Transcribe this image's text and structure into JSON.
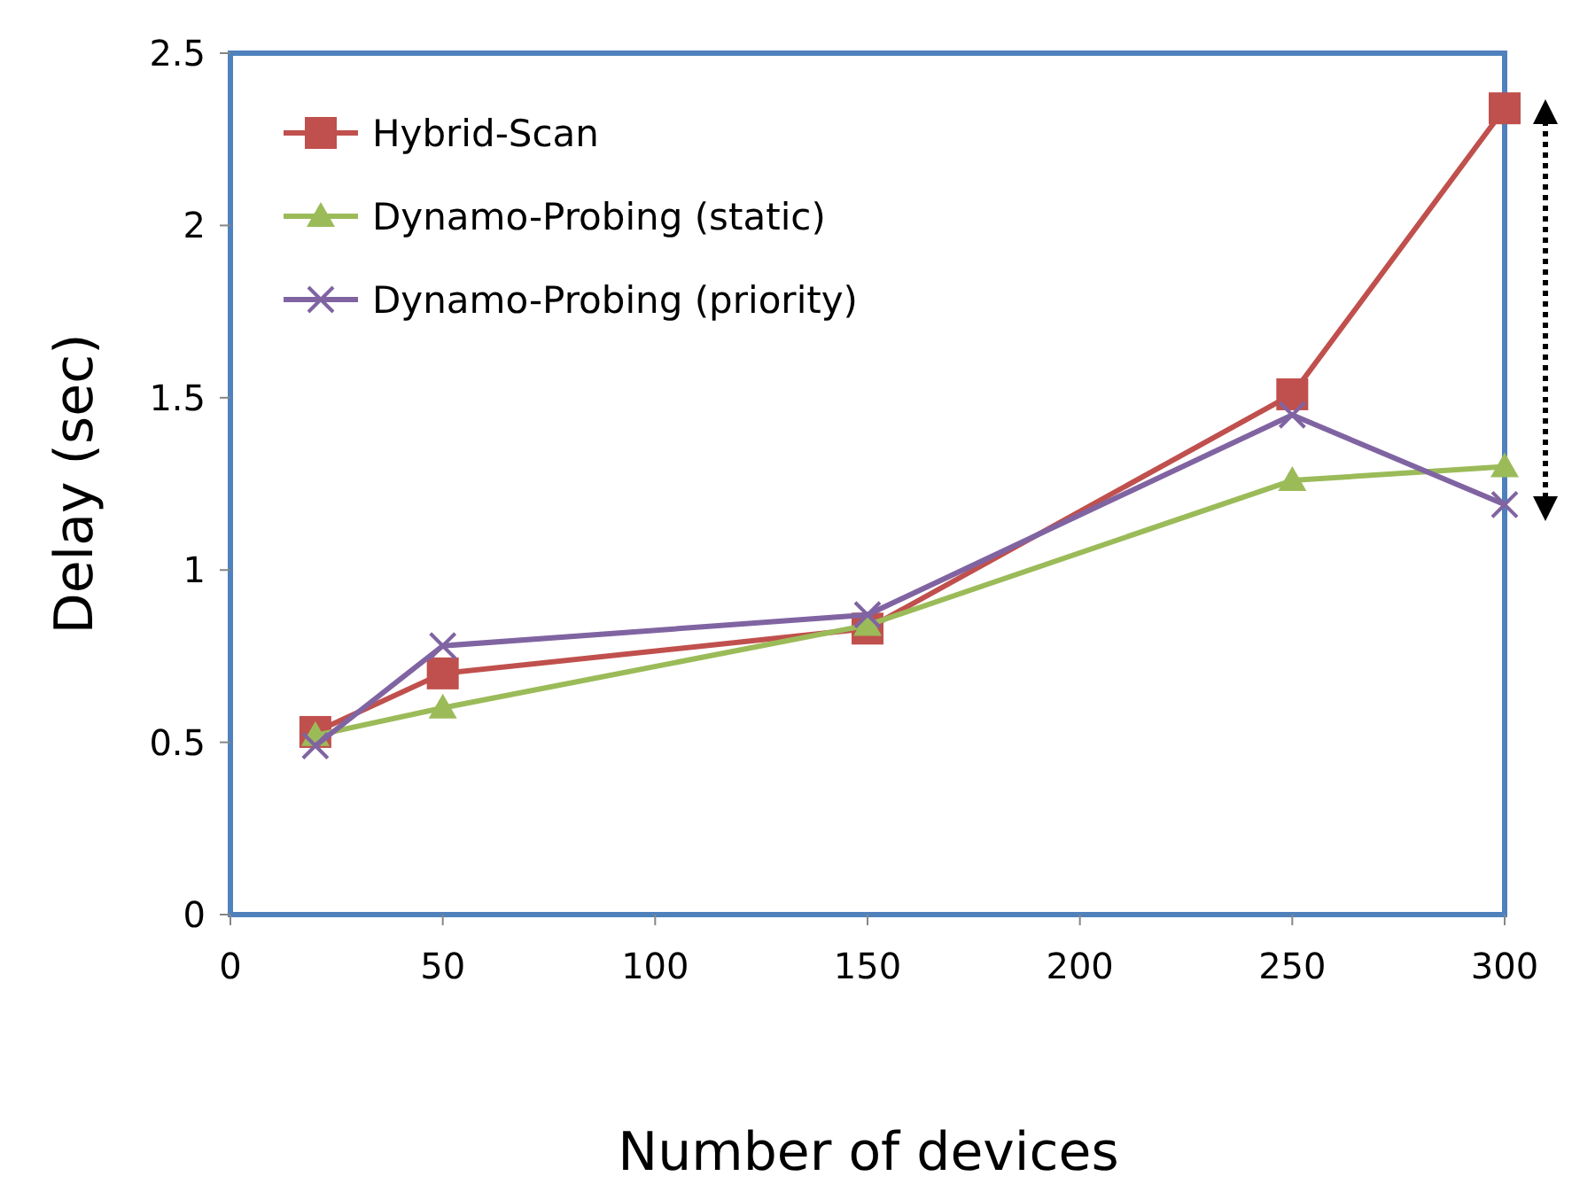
{
  "chart_data": {
    "type": "line",
    "xlabel": "Number of devices",
    "ylabel": "Delay (sec)",
    "xlim": [
      0,
      300
    ],
    "xticks": [
      0,
      50,
      100,
      150,
      200,
      250,
      300
    ],
    "ylim": [
      0,
      2.5
    ],
    "yticks": [
      0,
      0.5,
      1,
      1.5,
      2,
      2.5
    ],
    "grid": false,
    "legend": "top left",
    "series": [
      {
        "name": "Hybrid-Scan",
        "color": "#c0504d",
        "marker": "square",
        "x": [
          20,
          50,
          150,
          250,
          300
        ],
        "values": [
          0.53,
          0.7,
          0.83,
          1.51,
          2.34
        ]
      },
      {
        "name": "Dynamo-Probing (static)",
        "color": "#9bbb59",
        "marker": "triangle",
        "x": [
          20,
          50,
          150,
          250,
          300
        ],
        "values": [
          0.52,
          0.6,
          0.84,
          1.26,
          1.3
        ]
      },
      {
        "name": "Dynamo-Probing (priority)",
        "color": "#8064a2",
        "marker": "cross",
        "x": [
          20,
          50,
          150,
          250,
          300
        ],
        "values": [
          0.49,
          0.78,
          0.87,
          1.45,
          1.19
        ]
      }
    ]
  }
}
